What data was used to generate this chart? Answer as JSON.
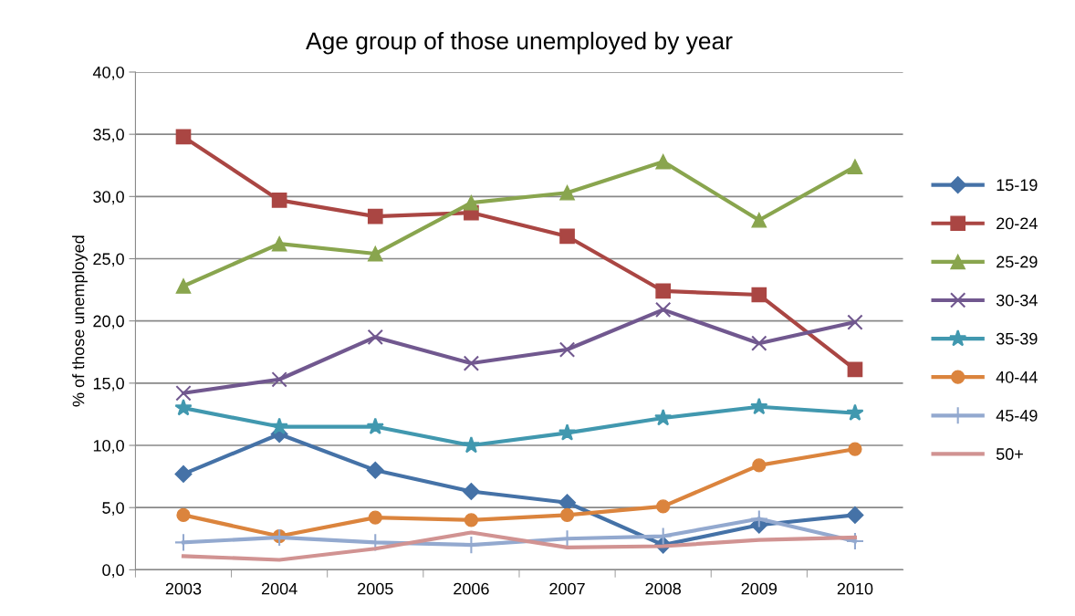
{
  "chart_data": {
    "type": "line",
    "title": "Age group of those unemployed by year",
    "ylabel": "% of those unemployed",
    "categories": [
      "2003",
      "2004",
      "2005",
      "2006",
      "2007",
      "2008",
      "2009",
      "2010"
    ],
    "series": [
      {
        "name": "15-19",
        "color": "#4572a7",
        "marker": "diamond",
        "values": [
          7.7,
          10.9,
          8.0,
          6.3,
          5.4,
          2.0,
          3.6,
          4.4
        ]
      },
      {
        "name": "20-24",
        "color": "#aa4643",
        "marker": "square",
        "values": [
          34.8,
          29.7,
          28.4,
          28.7,
          26.8,
          22.4,
          22.1,
          16.1
        ]
      },
      {
        "name": "25-29",
        "color": "#89a54e",
        "marker": "triangle",
        "values": [
          22.8,
          26.2,
          25.4,
          29.5,
          30.3,
          32.8,
          28.1,
          32.4
        ]
      },
      {
        "name": "30-34",
        "color": "#71588f",
        "marker": "cross",
        "values": [
          14.2,
          15.3,
          18.7,
          16.6,
          17.7,
          20.9,
          18.2,
          19.9
        ]
      },
      {
        "name": "35-39",
        "color": "#4198af",
        "marker": "star",
        "values": [
          13.0,
          11.5,
          11.5,
          10.0,
          11.0,
          12.2,
          13.1,
          12.6
        ]
      },
      {
        "name": "40-44",
        "color": "#db843d",
        "marker": "circle",
        "values": [
          4.4,
          2.7,
          4.2,
          4.0,
          4.4,
          5.1,
          8.4,
          9.7
        ]
      },
      {
        "name": "45-49",
        "color": "#93a9cf",
        "marker": "plus",
        "values": [
          2.2,
          2.6,
          2.2,
          2.0,
          2.5,
          2.7,
          4.1,
          2.3
        ]
      },
      {
        "name": "50+",
        "color": "#d19392",
        "marker": "none",
        "values": [
          1.1,
          0.8,
          1.7,
          3.0,
          1.8,
          1.9,
          2.4,
          2.6
        ]
      }
    ],
    "ylim": [
      0,
      40
    ],
    "yticks": [
      {
        "value": 0,
        "label": "0,0"
      },
      {
        "value": 5,
        "label": "5,0"
      },
      {
        "value": 10,
        "label": "10,0"
      },
      {
        "value": 15,
        "label": "15,0"
      },
      {
        "value": 20,
        "label": "20,0"
      },
      {
        "value": 25,
        "label": "25,0"
      },
      {
        "value": 30,
        "label": "30,0"
      },
      {
        "value": 35,
        "label": "35,0"
      },
      {
        "value": 40,
        "label": "40,0"
      }
    ],
    "grid": "y",
    "legend": "right",
    "line_style": "solid"
  }
}
